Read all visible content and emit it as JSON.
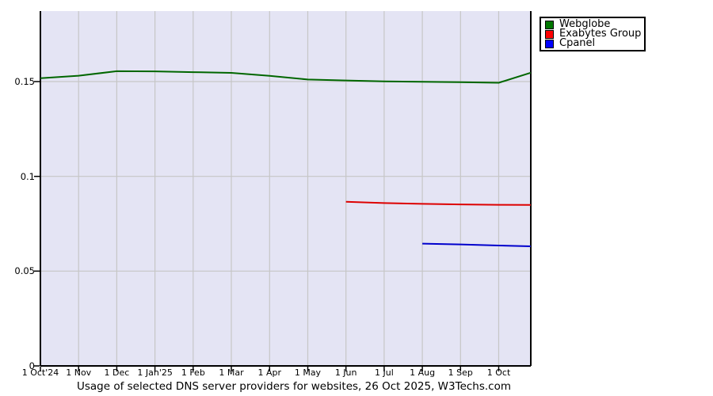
{
  "title": "Usage of selected DNS server providers for websites, 26 Oct 2025, W3Techs.com",
  "chart_data": {
    "type": "line",
    "title": "Usage of selected DNS server providers for websites, 26 Oct 2025, W3Techs.com",
    "x_unit": "months since 1 Oct 2024",
    "x_tick_labels": [
      "1 Oct'24",
      "1 Nov",
      "1 Dec",
      "1 Jan'25",
      "1 Feb",
      "1 Mar",
      "1 Apr",
      "1 May",
      "1 Jun",
      "1 Jul",
      "1 Aug",
      "1 Sep",
      "1 Oct"
    ],
    "x_tick_positions": [
      0,
      1,
      2,
      3,
      4,
      5,
      6,
      7,
      8,
      9,
      10,
      11,
      12
    ],
    "y_ticks": [
      {
        "value": 0,
        "label": "0"
      },
      {
        "value": 0.05,
        "label": "0.05"
      },
      {
        "value": 0.1,
        "label": "0.1"
      },
      {
        "value": 0.15,
        "label": "0.15"
      }
    ],
    "xlim": [
      0,
      12.84
    ],
    "ylim": [
      0,
      0.1872
    ],
    "grid": true,
    "legend_position": "top-right",
    "plot_bg": "#e4e4f4",
    "grid_color": "#c6c6c6",
    "axis_color": "#000000",
    "series": [
      {
        "name": "Webglobe",
        "color": "#006600",
        "swatch_color": "#007700",
        "points": [
          [
            0,
            0.1518
          ],
          [
            1,
            0.1531
          ],
          [
            2,
            0.1555
          ],
          [
            3,
            0.1554
          ],
          [
            4,
            0.155
          ],
          [
            5,
            0.1546
          ],
          [
            6,
            0.153
          ],
          [
            7,
            0.1511
          ],
          [
            8,
            0.1506
          ],
          [
            9,
            0.1501
          ],
          [
            10,
            0.1499
          ],
          [
            11,
            0.1497
          ],
          [
            12,
            0.1494
          ],
          [
            12.84,
            0.1547
          ]
        ]
      },
      {
        "name": "Exabytes Group",
        "color": "#dd0000",
        "swatch_color": "#ff0000",
        "points": [
          [
            8,
            0.0866
          ],
          [
            9,
            0.0859
          ],
          [
            10,
            0.0855
          ],
          [
            11,
            0.0852
          ],
          [
            12,
            0.085
          ],
          [
            12.84,
            0.0849
          ]
        ]
      },
      {
        "name": "Cpanel",
        "color": "#0000cc",
        "swatch_color": "#0000ff",
        "points": [
          [
            10,
            0.0645
          ],
          [
            11,
            0.0641
          ],
          [
            12,
            0.0635
          ],
          [
            12.84,
            0.0631
          ]
        ]
      }
    ]
  }
}
